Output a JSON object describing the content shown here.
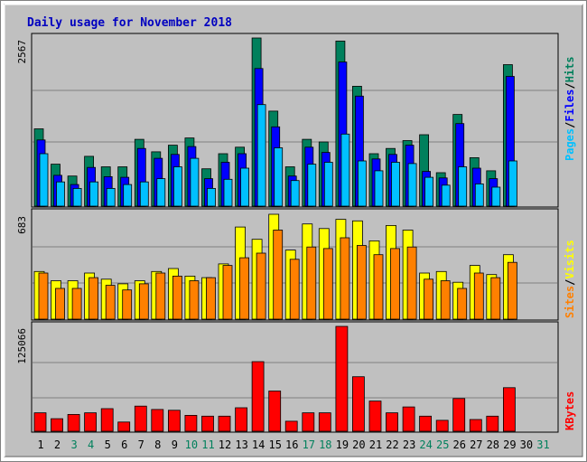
{
  "title": "Daily usage for November 2018",
  "colors": {
    "background": "#c0c0c0",
    "title": "#0000c0",
    "hits": "#00805c",
    "files": "#0000ff",
    "pages": "#00c0ff",
    "visits": "#ffff00",
    "sites": "#ff8000",
    "kbytes": "#ff0000",
    "weekend_label": "#00805c",
    "weekday_label": "#000000",
    "gridline": "#808080"
  },
  "chart_data": [
    {
      "type": "bar",
      "panel": "hits-files-pages",
      "ymax_label": "2567",
      "legend": [
        "Pages",
        "/",
        "Files",
        "/",
        "Hits"
      ],
      "categories": [
        "1",
        "2",
        "3",
        "4",
        "5",
        "6",
        "7",
        "8",
        "9",
        "10",
        "11",
        "12",
        "13",
        "14",
        "15",
        "16",
        "17",
        "18",
        "19",
        "20",
        "21",
        "22",
        "23",
        "24",
        "25",
        "26",
        "27",
        "28",
        "29",
        "30",
        "31"
      ],
      "weekend": [
        false,
        false,
        true,
        true,
        false,
        false,
        false,
        false,
        false,
        true,
        true,
        false,
        false,
        false,
        false,
        false,
        true,
        true,
        false,
        false,
        false,
        false,
        false,
        true,
        true,
        false,
        false,
        false,
        false,
        false,
        true
      ],
      "ylim": [
        0,
        2567
      ],
      "series": [
        {
          "name": "Hits",
          "values": [
            1180,
            640,
            460,
            760,
            600,
            600,
            1020,
            830,
            930,
            1040,
            570,
            800,
            900,
            2567,
            1450,
            600,
            1020,
            980,
            2520,
            1830,
            800,
            880,
            1000,
            1090,
            510,
            1400,
            740,
            540,
            2160,
            0,
            0
          ]
        },
        {
          "name": "Files",
          "values": [
            1010,
            470,
            330,
            590,
            450,
            440,
            880,
            730,
            790,
            910,
            420,
            670,
            800,
            2100,
            1210,
            460,
            900,
            820,
            2200,
            1680,
            720,
            790,
            930,
            530,
            430,
            1260,
            580,
            420,
            1980,
            0,
            0
          ]
        },
        {
          "name": "Pages",
          "values": [
            800,
            370,
            270,
            370,
            270,
            330,
            370,
            420,
            600,
            730,
            270,
            410,
            580,
            1550,
            890,
            390,
            640,
            670,
            1100,
            690,
            540,
            670,
            650,
            440,
            320,
            600,
            340,
            290,
            690,
            0,
            0
          ]
        }
      ]
    },
    {
      "type": "bar",
      "panel": "sites-visits",
      "ymax_label": "683",
      "legend": [
        "Sites",
        "/",
        "Visits"
      ],
      "ylim": [
        0,
        683
      ],
      "series": [
        {
          "name": "Visits",
          "values": [
            310,
            250,
            250,
            300,
            260,
            230,
            250,
            310,
            330,
            280,
            270,
            360,
            600,
            520,
            683,
            450,
            620,
            590,
            650,
            640,
            510,
            610,
            580,
            300,
            310,
            240,
            350,
            290,
            420,
            0,
            0
          ]
        },
        {
          "name": "Sites",
          "values": [
            300,
            200,
            200,
            270,
            220,
            190,
            230,
            300,
            280,
            250,
            270,
            350,
            400,
            430,
            580,
            390,
            470,
            460,
            530,
            480,
            420,
            460,
            470,
            260,
            250,
            200,
            300,
            270,
            370,
            0,
            0
          ]
        }
      ]
    },
    {
      "type": "bar",
      "panel": "kbytes",
      "ymax_label": "125066",
      "legend": [
        "KBytes"
      ],
      "ylim": [
        0,
        125066
      ],
      "series": [
        {
          "name": "KBytes",
          "values": [
            22000,
            15000,
            20000,
            22000,
            27000,
            11000,
            30000,
            26000,
            25000,
            19000,
            18000,
            18000,
            28000,
            83000,
            48000,
            12000,
            22000,
            22000,
            125066,
            65000,
            36000,
            22000,
            29000,
            18000,
            13000,
            39000,
            14000,
            18000,
            52000,
            0,
            0
          ]
        }
      ]
    }
  ]
}
